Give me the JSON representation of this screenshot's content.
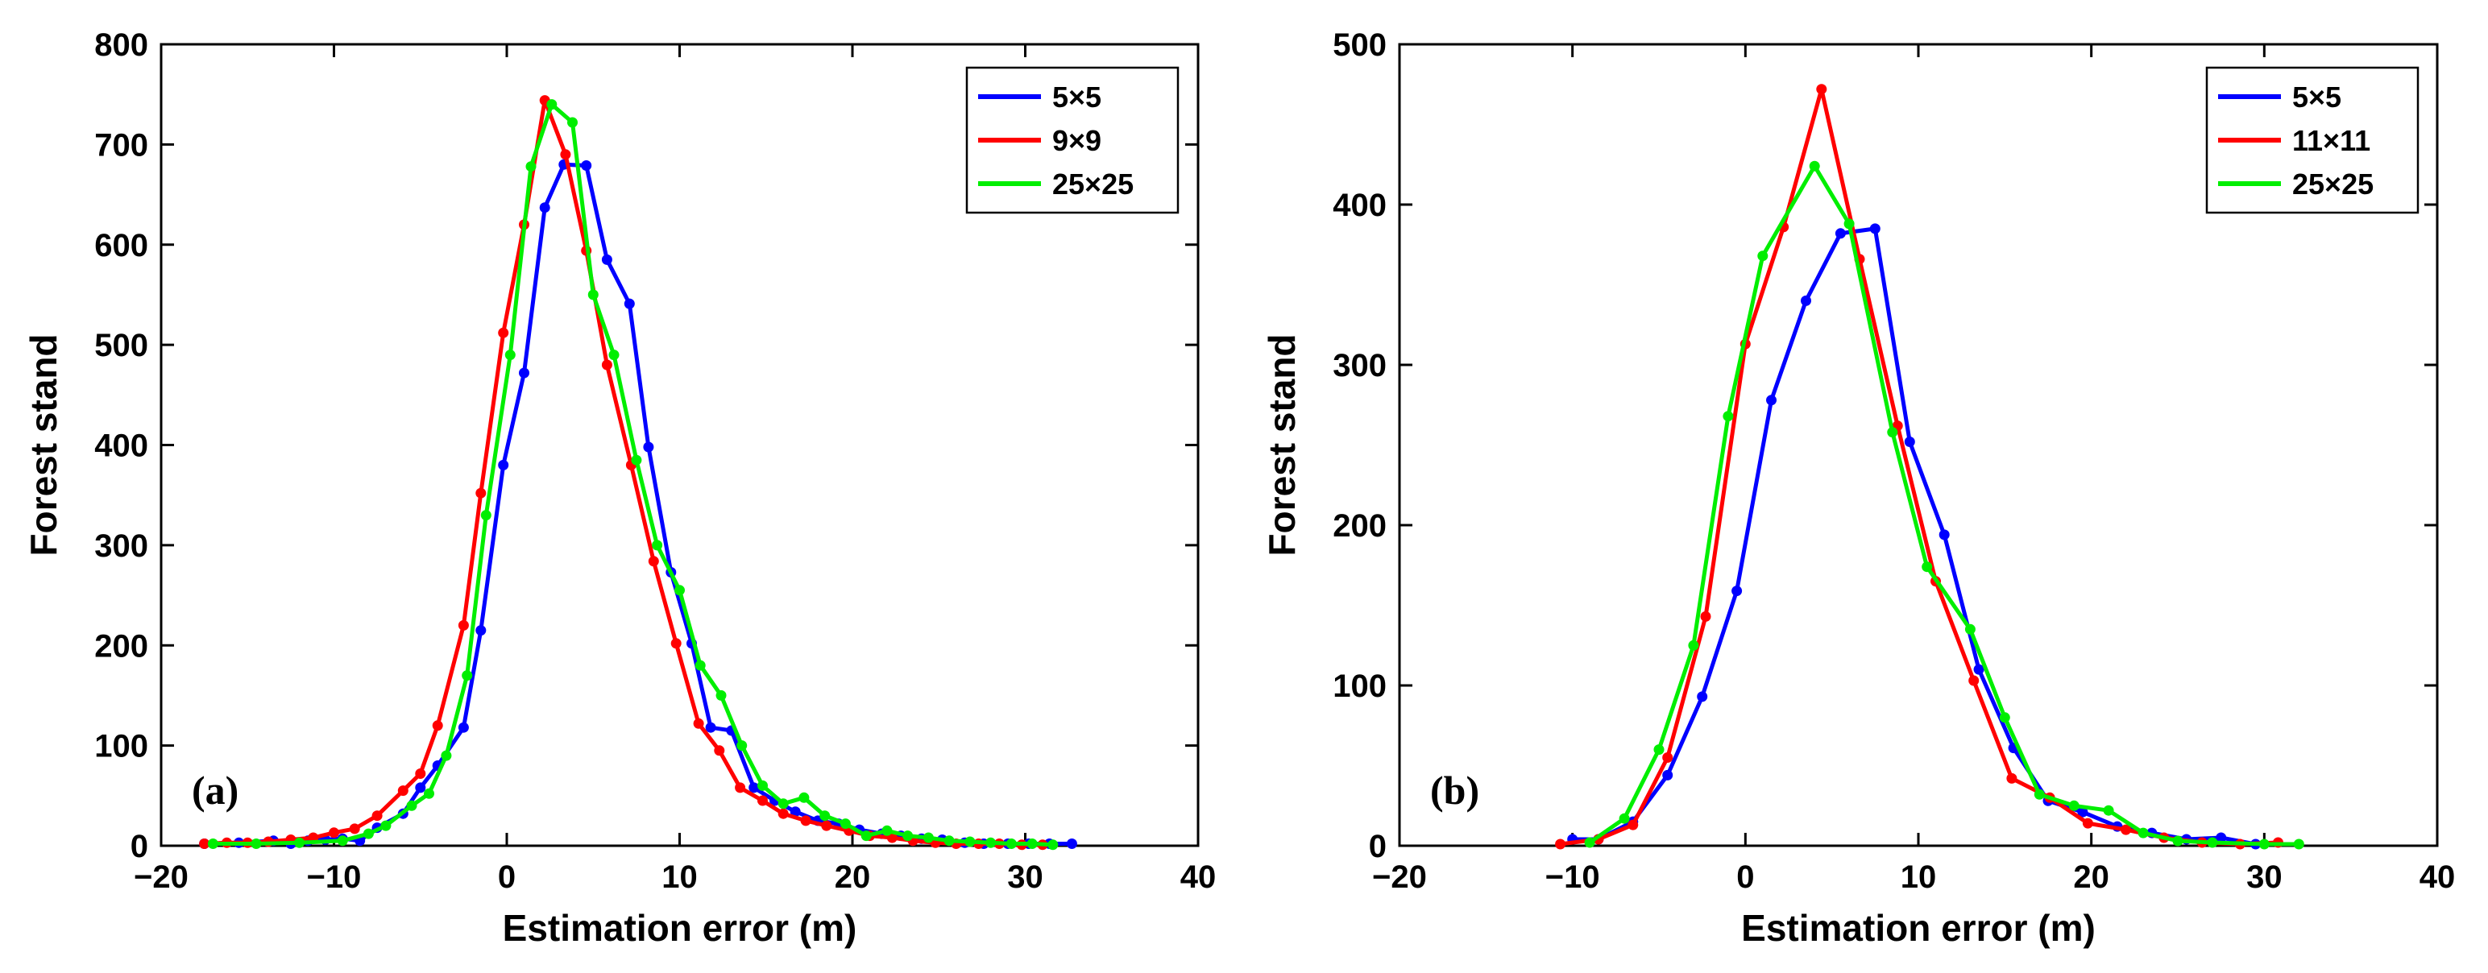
{
  "chart_data": [
    {
      "type": "line",
      "panel_label": "(a)",
      "xlabel": "Estimation error (m)",
      "ylabel": "Forest stand",
      "xlim": [
        -20,
        40
      ],
      "ylim": [
        0,
        800
      ],
      "xticks": [
        -20,
        -10,
        0,
        10,
        20,
        30,
        40
      ],
      "yticks": [
        0,
        100,
        200,
        300,
        400,
        500,
        600,
        700,
        800
      ],
      "xtick_labels": [
        "−20",
        "−10",
        "0",
        "10",
        "20",
        "30",
        "40"
      ],
      "ytick_labels": [
        "0",
        "100",
        "200",
        "300",
        "400",
        "500",
        "600",
        "700",
        "800"
      ],
      "grid": false,
      "legend_position": "top-right",
      "series": [
        {
          "name": "5×5",
          "color": "#0000ff",
          "points": [
            [
              -17.5,
              2
            ],
            [
              -15.5,
              3
            ],
            [
              -13.5,
              5
            ],
            [
              -12.5,
              2
            ],
            [
              -11.5,
              5
            ],
            [
              -10.5,
              6
            ],
            [
              -9.5,
              7
            ],
            [
              -8.5,
              5
            ],
            [
              -7.5,
              18
            ],
            [
              -6,
              32
            ],
            [
              -5,
              58
            ],
            [
              -4,
              80
            ],
            [
              -2.5,
              118
            ],
            [
              -1.5,
              215
            ],
            [
              -0.2,
              380
            ],
            [
              1,
              472
            ],
            [
              2.2,
              637
            ],
            [
              3.3,
              680
            ],
            [
              4.6,
              679
            ],
            [
              5.8,
              585
            ],
            [
              7.1,
              541
            ],
            [
              8.2,
              398
            ],
            [
              9.5,
              273
            ],
            [
              10.7,
              202
            ],
            [
              11.8,
              118
            ],
            [
              13,
              115
            ],
            [
              14.3,
              58
            ],
            [
              15.5,
              45
            ],
            [
              16.7,
              34
            ],
            [
              18,
              25
            ],
            [
              19.2,
              22
            ],
            [
              20.4,
              16
            ],
            [
              21.7,
              12
            ],
            [
              22.8,
              10
            ],
            [
              24,
              7
            ],
            [
              25.2,
              6
            ],
            [
              26.5,
              3
            ],
            [
              27.6,
              2
            ],
            [
              29,
              2
            ],
            [
              30.2,
              2
            ],
            [
              31.4,
              2
            ],
            [
              32.7,
              2
            ]
          ]
        },
        {
          "name": "9×9",
          "color": "#ff0000",
          "points": [
            [
              -17.5,
              2
            ],
            [
              -16.2,
              3
            ],
            [
              -15,
              3
            ],
            [
              -13.8,
              4
            ],
            [
              -12.5,
              6
            ],
            [
              -11.2,
              8
            ],
            [
              -10,
              13
            ],
            [
              -8.8,
              17
            ],
            [
              -7.5,
              30
            ],
            [
              -6,
              55
            ],
            [
              -5,
              72
            ],
            [
              -4,
              120
            ],
            [
              -2.5,
              220
            ],
            [
              -1.5,
              352
            ],
            [
              -0.2,
              512
            ],
            [
              1,
              620
            ],
            [
              2.2,
              744
            ],
            [
              3.4,
              690
            ],
            [
              4.6,
              594
            ],
            [
              5.8,
              480
            ],
            [
              7.2,
              380
            ],
            [
              8.5,
              284
            ],
            [
              9.8,
              202
            ],
            [
              11.1,
              122
            ],
            [
              12.3,
              95
            ],
            [
              13.5,
              58
            ],
            [
              14.8,
              45
            ],
            [
              16,
              32
            ],
            [
              17.3,
              25
            ],
            [
              18.5,
              20
            ],
            [
              19.8,
              15
            ],
            [
              21,
              10
            ],
            [
              22.3,
              8
            ],
            [
              23.5,
              5
            ],
            [
              24.8,
              3
            ],
            [
              26,
              2
            ],
            [
              27.3,
              2
            ],
            [
              28.5,
              2
            ],
            [
              29.8,
              1
            ],
            [
              31,
              1
            ]
          ]
        },
        {
          "name": "25×25",
          "color": "#00ee00",
          "points": [
            [
              -17,
              2
            ],
            [
              -14.5,
              2
            ],
            [
              -12,
              3
            ],
            [
              -9.5,
              5
            ],
            [
              -8,
              12
            ],
            [
              -7,
              20
            ],
            [
              -5.5,
              40
            ],
            [
              -4.5,
              52
            ],
            [
              -3.5,
              90
            ],
            [
              -2.3,
              170
            ],
            [
              -1.2,
              330
            ],
            [
              0.2,
              490
            ],
            [
              1.4,
              678
            ],
            [
              2.6,
              740
            ],
            [
              3.8,
              722
            ],
            [
              5,
              550
            ],
            [
              6.2,
              490
            ],
            [
              7.5,
              385
            ],
            [
              8.7,
              300
            ],
            [
              10,
              255
            ],
            [
              11.2,
              180
            ],
            [
              12.4,
              150
            ],
            [
              13.6,
              100
            ],
            [
              14.8,
              60
            ],
            [
              16,
              42
            ],
            [
              17.2,
              48
            ],
            [
              18.4,
              30
            ],
            [
              19.6,
              22
            ],
            [
              20.8,
              10
            ],
            [
              22,
              15
            ],
            [
              23.2,
              10
            ],
            [
              24.4,
              8
            ],
            [
              25.6,
              5
            ],
            [
              26.8,
              4
            ],
            [
              28,
              3
            ],
            [
              29.2,
              2
            ],
            [
              30.4,
              2
            ],
            [
              31.6,
              1
            ]
          ]
        }
      ]
    },
    {
      "type": "line",
      "panel_label": "(b)",
      "xlabel": "Estimation error (m)",
      "ylabel": "Forest stand",
      "xlim": [
        -20,
        40
      ],
      "ylim": [
        0,
        500
      ],
      "xticks": [
        -20,
        -10,
        0,
        10,
        20,
        30,
        40
      ],
      "yticks": [
        0,
        100,
        200,
        300,
        400,
        500
      ],
      "xtick_labels": [
        "−20",
        "−10",
        "0",
        "10",
        "20",
        "30",
        "40"
      ],
      "ytick_labels": [
        "0",
        "100",
        "200",
        "300",
        "400",
        "500"
      ],
      "grid": false,
      "legend_position": "top-right",
      "series": [
        {
          "name": "5×5",
          "color": "#0000ff",
          "points": [
            [
              -10,
              4
            ],
            [
              -8.5,
              4
            ],
            [
              -6.5,
              15
            ],
            [
              -4.5,
              44
            ],
            [
              -2.5,
              93
            ],
            [
              -0.5,
              159
            ],
            [
              1.5,
              278
            ],
            [
              3.5,
              340
            ],
            [
              5.5,
              382
            ],
            [
              7.5,
              385
            ],
            [
              9.5,
              252
            ],
            [
              11.5,
              194
            ],
            [
              13.5,
              110
            ],
            [
              15.5,
              61
            ],
            [
              17.5,
              28
            ],
            [
              19.5,
              21
            ],
            [
              21.5,
              12
            ],
            [
              23.5,
              8
            ],
            [
              25.5,
              4
            ],
            [
              27.5,
              5
            ],
            [
              29.5,
              1
            ]
          ]
        },
        {
          "name": "11×11",
          "color": "#ff0000",
          "points": [
            [
              -10.7,
              1
            ],
            [
              -8.5,
              4
            ],
            [
              -6.5,
              13
            ],
            [
              -4.5,
              55
            ],
            [
              -2.3,
              143
            ],
            [
              0,
              313
            ],
            [
              2.2,
              386
            ],
            [
              4.4,
              472
            ],
            [
              6.6,
              366
            ],
            [
              8.8,
              262
            ],
            [
              11,
              165
            ],
            [
              13.2,
              103
            ],
            [
              15.4,
              42
            ],
            [
              17.6,
              30
            ],
            [
              19.8,
              14
            ],
            [
              22,
              10
            ],
            [
              24.2,
              5
            ],
            [
              26.4,
              2
            ],
            [
              28.6,
              1
            ],
            [
              30.8,
              2
            ]
          ]
        },
        {
          "name": "25×25",
          "color": "#00ee00",
          "points": [
            [
              -9,
              2
            ],
            [
              -7,
              17
            ],
            [
              -5,
              60
            ],
            [
              -3,
              125
            ],
            [
              -1,
              268
            ],
            [
              1,
              368
            ],
            [
              4,
              424
            ],
            [
              6,
              388
            ],
            [
              8.5,
              258
            ],
            [
              10.5,
              174
            ],
            [
              13,
              135
            ],
            [
              15,
              80
            ],
            [
              17,
              32
            ],
            [
              19,
              25
            ],
            [
              21,
              22
            ],
            [
              23,
              8
            ],
            [
              25,
              3
            ],
            [
              27,
              2
            ],
            [
              30,
              1
            ],
            [
              32,
              1
            ]
          ]
        }
      ]
    }
  ]
}
